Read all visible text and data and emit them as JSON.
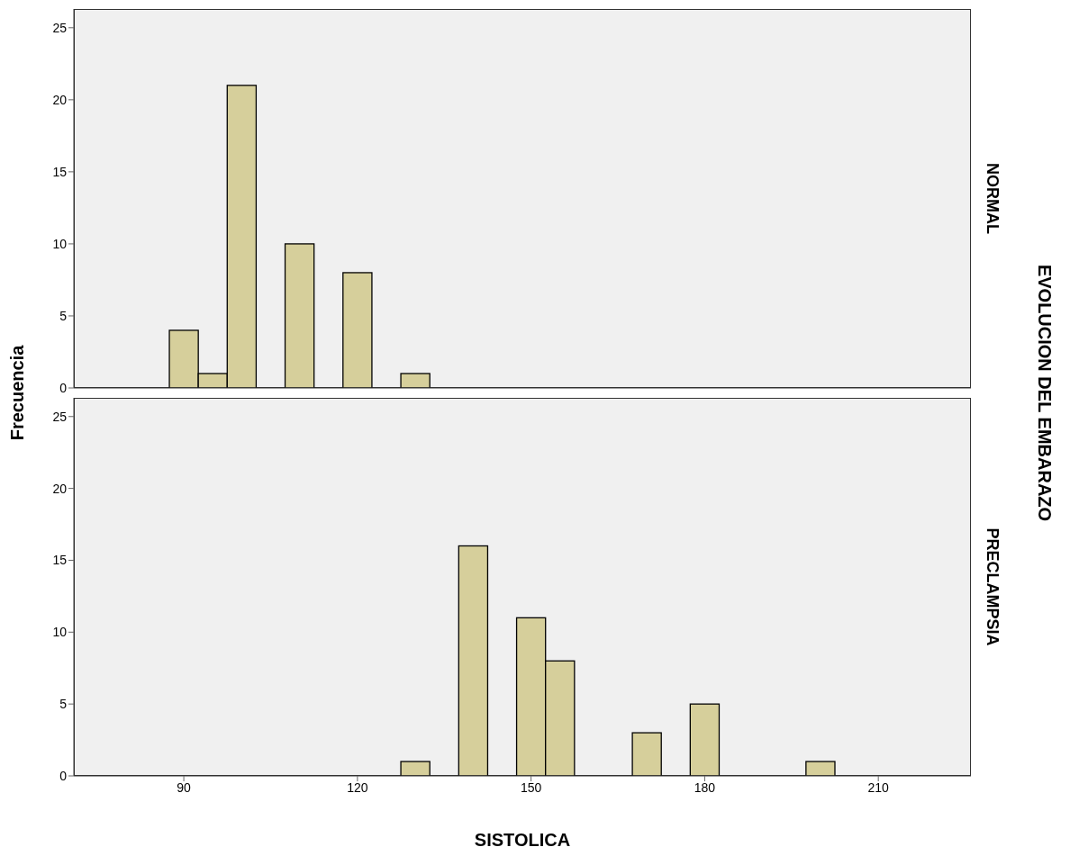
{
  "chart_data": [
    {
      "type": "histogram",
      "y2label": "NORMAL",
      "ylabel": "Frecuencia",
      "annotations": [
        "EVOLUCION DEL EMBARAZO"
      ],
      "bins": [
        87.5,
        92.5,
        97.5,
        102.5,
        107.5,
        112.5,
        117.5,
        122.5,
        127.5,
        132.5,
        137.5,
        142.5,
        147.5,
        152.5,
        157.5,
        162.5,
        167.5,
        172.5,
        177.5,
        182.5,
        187.5,
        192.5,
        197.5,
        202.5
      ],
      "values": [
        4,
        1,
        21,
        0,
        10,
        0,
        8,
        0,
        1,
        0,
        0,
        0,
        0,
        0,
        0,
        0,
        0,
        0,
        0,
        0,
        0,
        0,
        0
      ],
      "color": "#d6cf9b",
      "xlim": [
        71,
        226
      ],
      "xticks": [
        90,
        120,
        150,
        180,
        210
      ],
      "ylim": [
        0,
        26.3
      ],
      "yticks": [
        0,
        5,
        10,
        15,
        20,
        25
      ],
      "tick_labels": "y"
    },
    {
      "type": "histogram",
      "y2label": "PRECLAMPSIA",
      "xlabel": "SISTOLICA",
      "bins": [
        87.5,
        92.5,
        97.5,
        102.5,
        107.5,
        112.5,
        117.5,
        122.5,
        127.5,
        132.5,
        137.5,
        142.5,
        147.5,
        152.5,
        157.5,
        162.5,
        167.5,
        172.5,
        177.5,
        182.5,
        187.5,
        192.5,
        197.5,
        202.5
      ],
      "values": [
        0,
        0,
        0,
        0,
        0,
        0,
        0,
        0,
        1,
        0,
        16,
        0,
        11,
        8,
        0,
        0,
        3,
        0,
        5,
        0,
        0,
        0,
        1
      ],
      "color": "#d6cf9b",
      "xlim": [
        71,
        226
      ],
      "xticks": [
        90,
        120,
        150,
        180,
        210
      ],
      "ylim": [
        0,
        26.3
      ],
      "yticks": [
        0,
        5,
        10,
        15,
        20,
        25
      ]
    }
  ]
}
